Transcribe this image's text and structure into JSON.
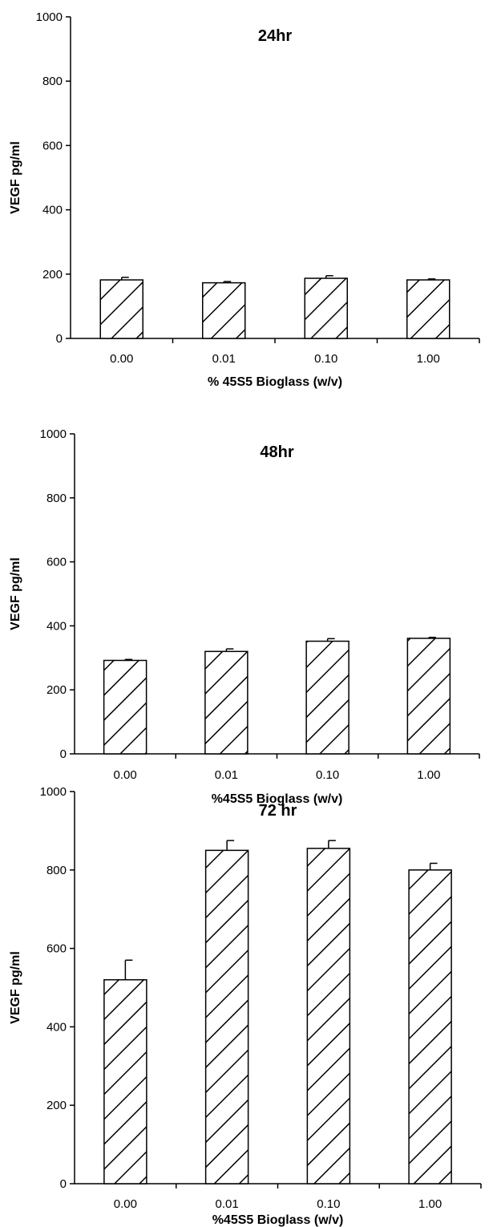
{
  "chart_data": [
    {
      "type": "bar",
      "title": "24hr",
      "xlabel": "% 45S5 Bioglass (w/v)",
      "ylabel": "VEGF pg/ml",
      "categories": [
        "0.00",
        "0.01",
        "0.10",
        "1.00"
      ],
      "values": [
        182,
        173,
        187,
        182
      ],
      "errors": [
        8,
        4,
        8,
        3
      ],
      "ylim": [
        0,
        1000
      ],
      "yticks": [
        "0",
        "200",
        "400",
        "600",
        "800",
        "1000"
      ],
      "pattern": "diagonal-hatch",
      "grid": false,
      "legend": "none"
    },
    {
      "type": "bar",
      "title": "48hr",
      "xlabel": "%45S5 Bioglass (w/v)",
      "ylabel": "VEGF pg/ml",
      "categories": [
        "0.00",
        "0.01",
        "0.10",
        "1.00"
      ],
      "values": [
        292,
        320,
        352,
        361
      ],
      "errors": [
        3,
        8,
        8,
        3
      ],
      "ylim": [
        0,
        1000
      ],
      "yticks": [
        "0",
        "200",
        "400",
        "600",
        "800",
        "1000"
      ],
      "pattern": "diagonal-hatch",
      "grid": false,
      "legend": "none"
    },
    {
      "type": "bar",
      "title": "72 hr",
      "xlabel": "%45S5 Bioglass (w/v)",
      "ylabel": "VEGF pg/ml",
      "categories": [
        "0.00",
        "0.01",
        "0.10",
        "1.00"
      ],
      "values": [
        520,
        850,
        855,
        800
      ],
      "errors": [
        50,
        25,
        20,
        17
      ],
      "ylim": [
        0,
        1000
      ],
      "yticks": [
        "0",
        "200",
        "400",
        "600",
        "800",
        "1000"
      ],
      "pattern": "diagonal-hatch",
      "grid": false,
      "legend": "none"
    }
  ]
}
